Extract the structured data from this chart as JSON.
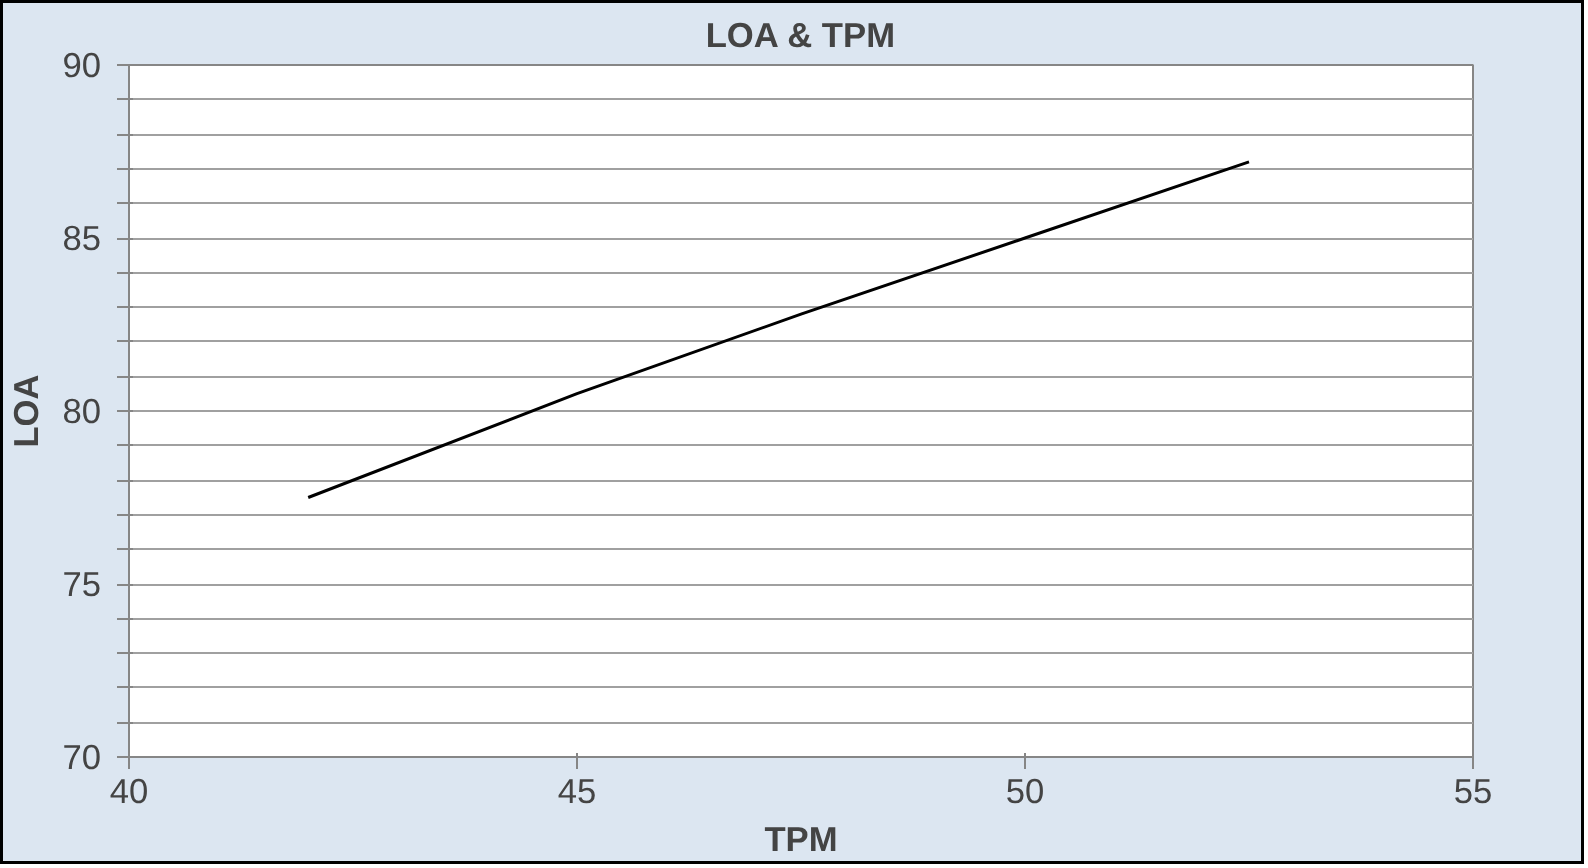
{
  "chart_data": {
    "type": "line",
    "title": "LOA & TPM",
    "xlabel": "TPM",
    "ylabel": "LOA",
    "x": [
      42,
      45,
      47.5,
      50,
      52.5
    ],
    "series": [
      {
        "color": "#000000",
        "values": [
          77.5,
          80.5,
          82.8,
          85.0,
          87.2
        ]
      }
    ],
    "xlim": [
      40,
      55
    ],
    "xticks": [
      40,
      45,
      50,
      55
    ],
    "ylim": [
      70,
      90
    ],
    "yticks": [
      70,
      {
        "value": 71,
        "label": null
      },
      {
        "value": 72,
        "label": null
      },
      {
        "value": 73,
        "label": null
      },
      {
        "value": 74,
        "label": null
      },
      75,
      {
        "value": 76,
        "label": null
      },
      {
        "value": 77,
        "label": null
      },
      {
        "value": 78,
        "label": null
      },
      {
        "value": 79,
        "label": null
      },
      80,
      {
        "value": 81,
        "label": null
      },
      {
        "value": 82,
        "label": null
      },
      {
        "value": 83,
        "label": null
      },
      {
        "value": 84,
        "label": null
      },
      85,
      {
        "value": 86,
        "label": null
      },
      {
        "value": 87,
        "label": null
      },
      {
        "value": 88,
        "label": null
      },
      {
        "value": 89,
        "label": null
      },
      90
    ],
    "grid": "y",
    "marker": "none",
    "line_style": "solid"
  }
}
